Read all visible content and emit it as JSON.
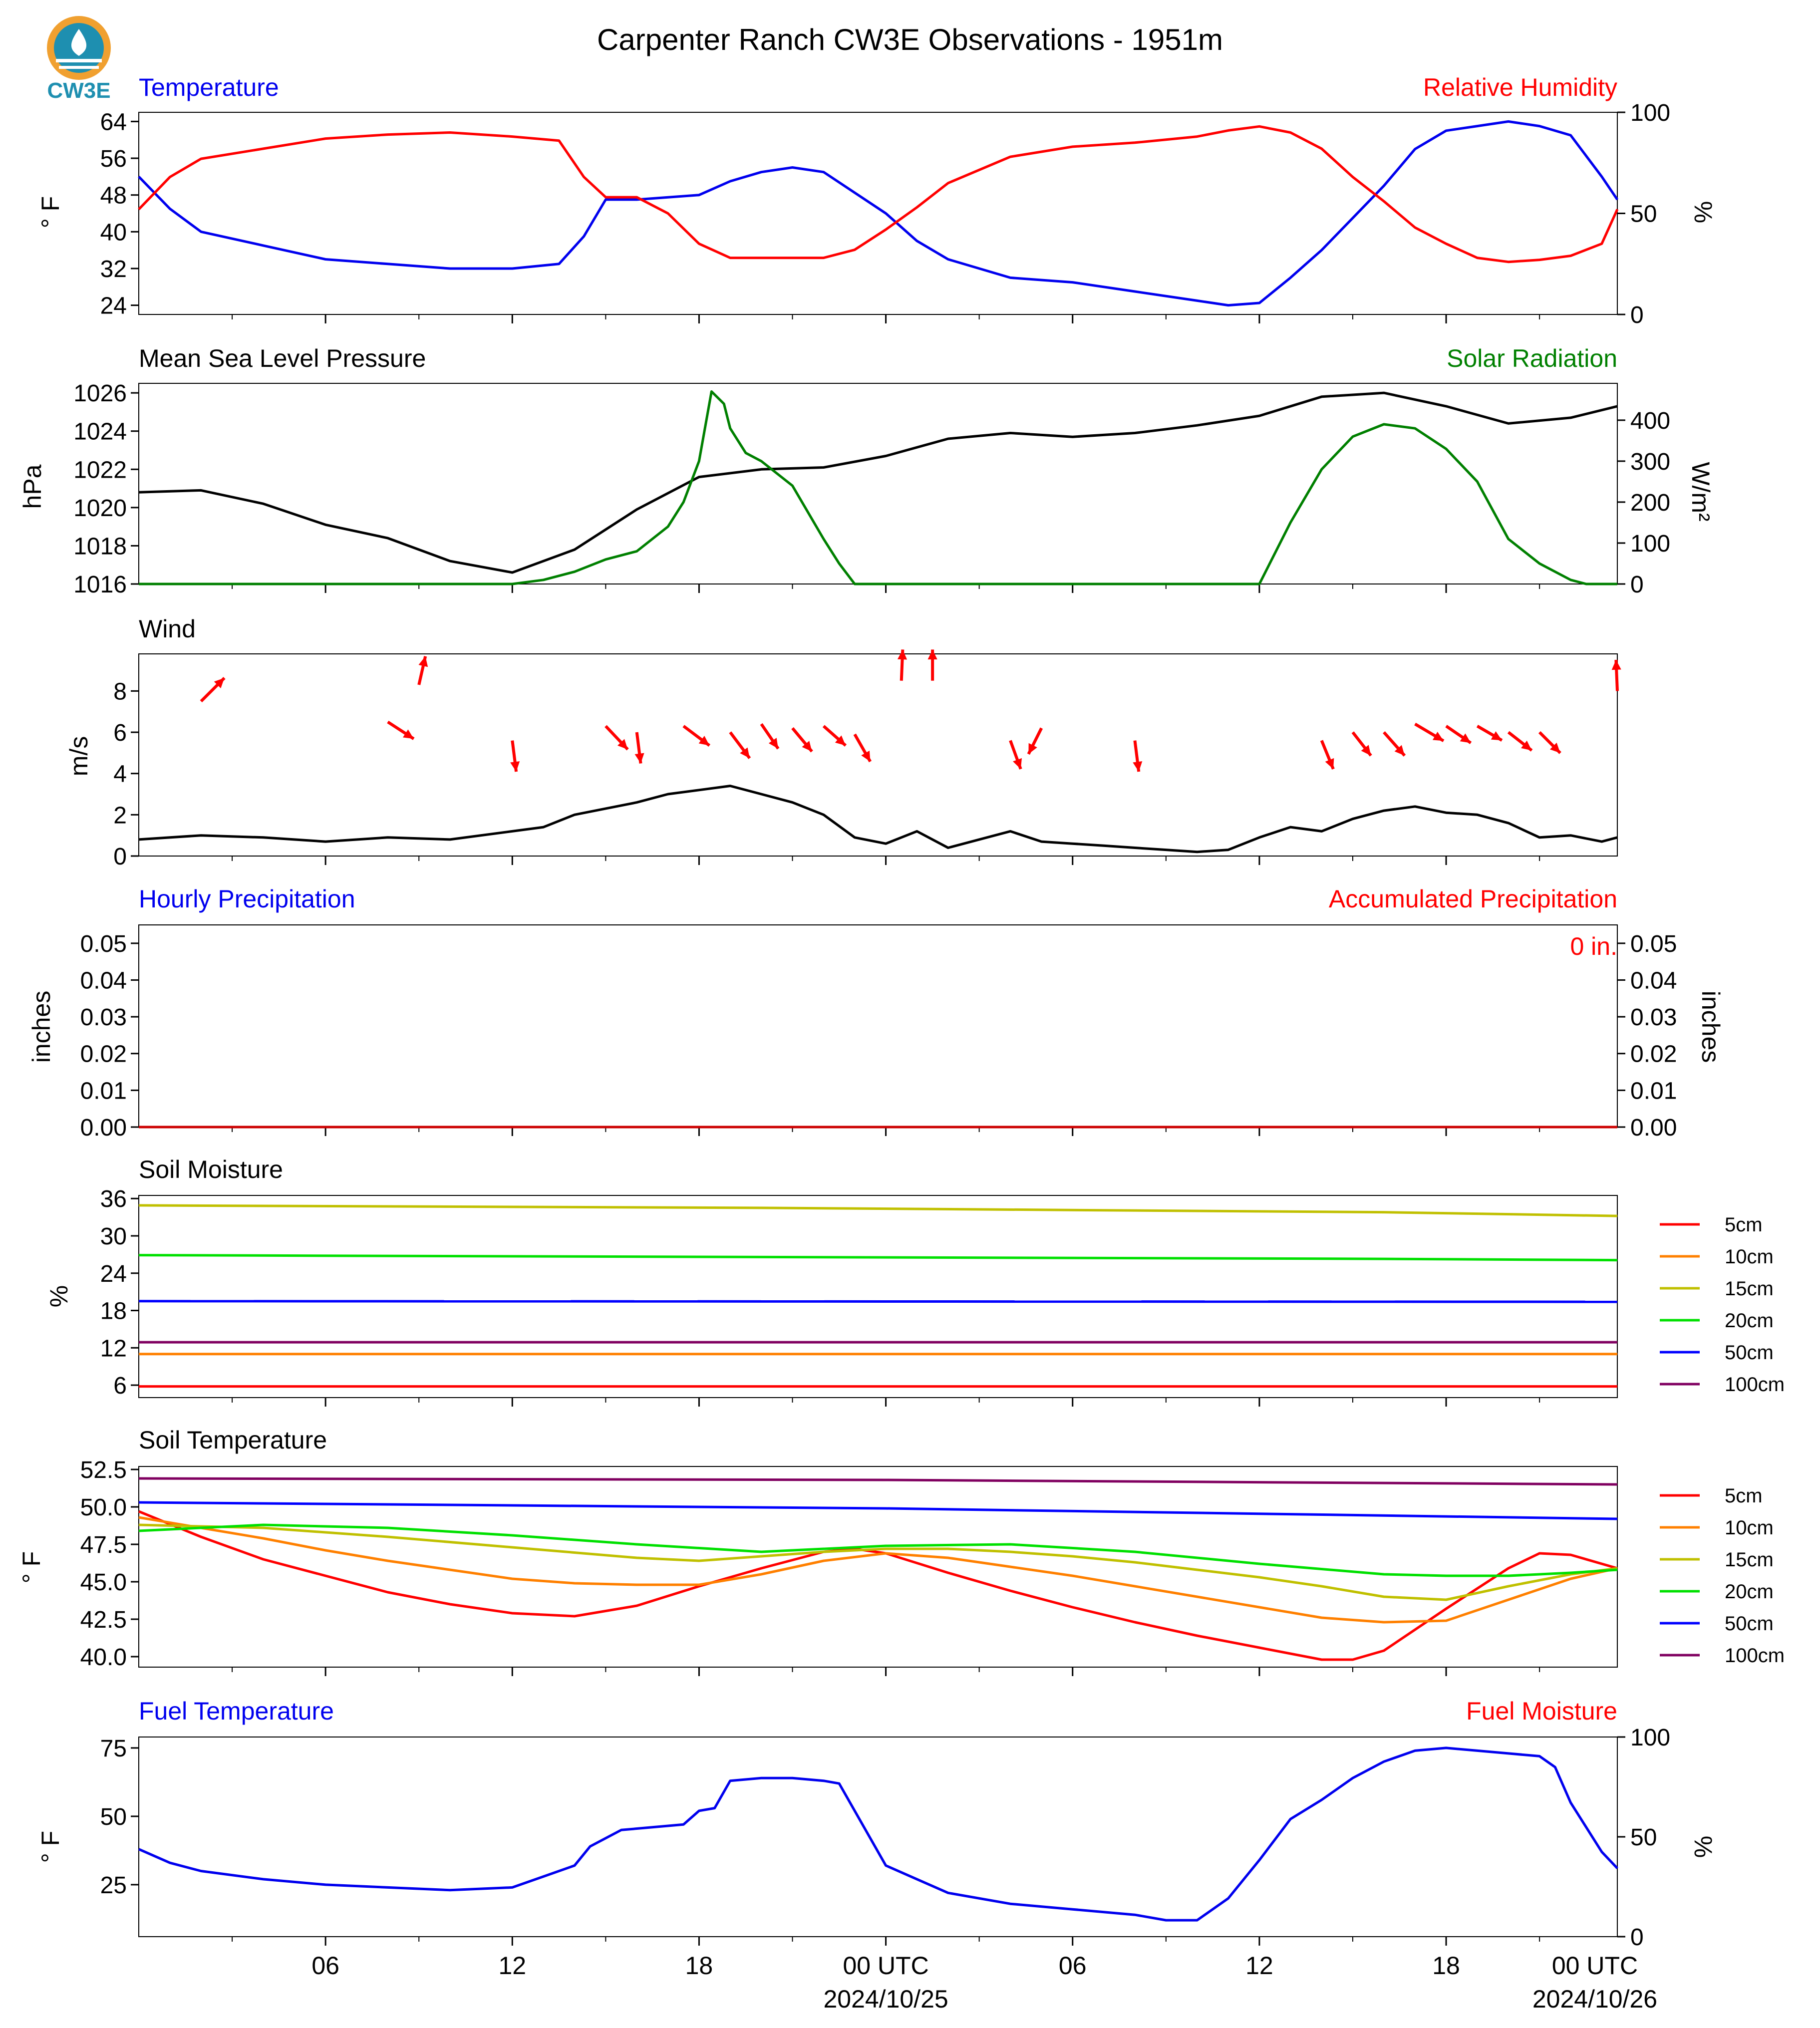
{
  "figure": {
    "title": "Carpenter Ranch CW3E Observations - 1951m",
    "logo_text": "CW3E",
    "colors": {
      "logo": "#1e8fb0",
      "logo_accent": "#f0a030"
    }
  },
  "time_axis": {
    "tick_labels": [
      "06",
      "12",
      "18",
      "00 UTC",
      "06",
      "12",
      "18",
      "00 UTC"
    ],
    "date_labels": [
      "2024/10/25",
      "2024/10/26"
    ]
  },
  "chart_data": [
    {
      "id": "temp_rh",
      "type": "line",
      "title_left": "Temperature",
      "title_right": "Relative Humidity",
      "ylabel_left": "° F",
      "ylabel_right": "%",
      "ylim_left": [
        22,
        66
      ],
      "yticks_left": [
        24,
        32,
        40,
        48,
        56,
        64
      ],
      "ylim_right": [
        0,
        100
      ],
      "yticks_right": [
        0,
        50,
        100
      ],
      "series": [
        {
          "name": "Temperature",
          "axis": "left",
          "color": "#0000ee",
          "x": [
            0,
            1,
            2,
            4,
            6,
            8,
            10,
            12,
            13.5,
            14.3,
            15,
            16,
            18,
            19,
            20,
            21,
            22,
            24,
            25,
            26,
            28,
            30,
            32,
            34,
            35,
            36,
            37,
            38,
            39,
            40,
            40.5,
            41,
            42,
            43,
            44,
            45,
            46,
            47,
            47.5
          ],
          "y": [
            52,
            45,
            40,
            37,
            34,
            33,
            32,
            32,
            33,
            39,
            47,
            47,
            48,
            51,
            53,
            54,
            53,
            44,
            38,
            34,
            30,
            29,
            27,
            25,
            24,
            24.5,
            30,
            36,
            43,
            50,
            54,
            58,
            62,
            63,
            64,
            63,
            61,
            52,
            47
          ]
        },
        {
          "name": "Relative Humidity",
          "axis": "right",
          "color": "#ff0000",
          "x": [
            0,
            1,
            2,
            4,
            6,
            8,
            10,
            12,
            13.5,
            14.3,
            15,
            16,
            17,
            18,
            19,
            20,
            21,
            22,
            23,
            24,
            25,
            26,
            28,
            30,
            32,
            34,
            35,
            36,
            37,
            38,
            39,
            40,
            41,
            42,
            43,
            44,
            45,
            46,
            47,
            47.5
          ],
          "y": [
            52,
            68,
            77,
            82,
            87,
            89,
            90,
            88,
            86,
            68,
            58,
            58,
            50,
            35,
            28,
            28,
            28,
            28,
            32,
            42,
            53,
            65,
            78,
            83,
            85,
            88,
            91,
            93,
            90,
            82,
            68,
            56,
            43,
            35,
            28,
            26,
            27,
            29,
            35,
            52
          ]
        }
      ]
    },
    {
      "id": "pressure_solar",
      "type": "line",
      "title_left": "Mean Sea Level Pressure",
      "title_right": "Solar Radiation",
      "ylabel_left": "hPa",
      "ylabel_right": "W/m²",
      "ylim_left": [
        1016,
        1026.5
      ],
      "yticks_left": [
        1016,
        1018,
        1020,
        1022,
        1024,
        1026
      ],
      "ylim_right": [
        0,
        490
      ],
      "yticks_right": [
        0,
        100,
        200,
        300,
        400
      ],
      "series": [
        {
          "name": "Mean Sea Level Pressure",
          "axis": "left",
          "color": "#000000",
          "x": [
            0,
            2,
            4,
            6,
            8,
            10,
            12,
            14,
            16,
            18,
            20,
            22,
            24,
            26,
            28,
            30,
            32,
            34,
            36,
            38,
            40,
            42,
            44,
            46,
            47.5
          ],
          "y": [
            1020.8,
            1020.9,
            1020.2,
            1019.1,
            1018.4,
            1017.2,
            1016.6,
            1017.8,
            1019.9,
            1021.6,
            1022.0,
            1022.1,
            1022.7,
            1023.6,
            1023.9,
            1023.7,
            1023.9,
            1024.3,
            1024.8,
            1025.8,
            1026.0,
            1025.3,
            1024.4,
            1024.7,
            1025.3
          ]
        },
        {
          "name": "Solar Radiation",
          "axis": "right",
          "color": "#008000",
          "x": [
            0,
            11,
            12,
            13,
            14,
            15,
            16,
            17,
            17.5,
            18,
            18.4,
            18.8,
            19,
            19.5,
            20,
            21,
            22,
            22.5,
            23,
            24,
            34,
            36,
            37,
            38,
            39,
            40,
            41,
            42,
            43,
            44,
            45,
            46,
            46.5,
            47.5
          ],
          "y": [
            0,
            0,
            0,
            10,
            30,
            60,
            80,
            140,
            200,
            300,
            470,
            440,
            380,
            320,
            300,
            240,
            110,
            50,
            0,
            0,
            0,
            0,
            150,
            280,
            360,
            390,
            380,
            330,
            250,
            110,
            50,
            10,
            0,
            0
          ]
        }
      ]
    },
    {
      "id": "wind",
      "type": "line",
      "title": "Wind",
      "ylabel": "m/s",
      "ylim": [
        0,
        9.8
      ],
      "yticks": [
        0,
        2,
        4,
        6,
        8
      ],
      "series": [
        {
          "name": "Wind Speed",
          "color": "#000000",
          "x": [
            0,
            2,
            4,
            6,
            8,
            10,
            12,
            13,
            14,
            15,
            16,
            17,
            18,
            19,
            20,
            21,
            22,
            23,
            24,
            25,
            26,
            27,
            28,
            29,
            30,
            31,
            32,
            33,
            34,
            35,
            36,
            37,
            38,
            39,
            40,
            41,
            42,
            43,
            44,
            45,
            46,
            47,
            47.5
          ],
          "y": [
            0.8,
            1.0,
            0.9,
            0.7,
            0.9,
            0.8,
            1.2,
            1.4,
            2.0,
            2.3,
            2.6,
            3.0,
            3.2,
            3.4,
            3.0,
            2.6,
            2.0,
            0.9,
            0.6,
            1.2,
            0.4,
            0.8,
            1.2,
            0.7,
            0.6,
            0.5,
            0.4,
            0.3,
            0.2,
            0.3,
            0.9,
            1.4,
            1.2,
            1.8,
            2.2,
            2.4,
            2.1,
            2.0,
            1.6,
            0.9,
            1.0,
            0.7,
            0.9
          ]
        }
      ],
      "arrows": {
        "color": "#ff0000",
        "x": [
          2,
          8,
          9,
          12,
          15,
          16,
          17.5,
          19,
          20,
          21,
          22,
          23,
          24.5,
          25.5,
          28,
          29,
          32,
          38,
          39,
          40,
          41,
          42,
          43,
          44,
          45,
          47.5
        ],
        "y": [
          7.5,
          6.5,
          8.3,
          5.6,
          6.3,
          6.0,
          6.3,
          6.0,
          6.4,
          6.2,
          6.3,
          5.9,
          8.5,
          8.5,
          5.6,
          6.2,
          5.6,
          5.6,
          6.0,
          6.0,
          6.4,
          6.3,
          6.3,
          6.0,
          6.0,
          8.0
        ],
        "u": [
          1.8,
          2.0,
          0.5,
          0.3,
          1.7,
          0.3,
          2.0,
          1.5,
          1.3,
          1.5,
          1.7,
          1.2,
          0.1,
          0.0,
          0.8,
          -1.0,
          0.3,
          0.9,
          1.4,
          1.6,
          2.2,
          1.9,
          1.9,
          1.8,
          1.6,
          -0.1
        ],
        "v": [
          1.8,
          -1.3,
          2.2,
          -2.4,
          -1.8,
          -2.4,
          -1.5,
          -2.0,
          -1.9,
          -1.8,
          -1.5,
          -2.1,
          2.4,
          2.4,
          -2.2,
          -2.0,
          -2.4,
          -2.2,
          -1.8,
          -1.8,
          -1.3,
          -1.3,
          -1.1,
          -1.4,
          -1.6,
          2.4
        ]
      }
    },
    {
      "id": "precip",
      "type": "line",
      "title_left": "Hourly Precipitation",
      "title_right": "Accumulated Precipitation",
      "ylabel_left": "inches",
      "ylabel_right": "inches",
      "ylim": [
        0,
        0.055
      ],
      "yticks": [
        0.0,
        0.01,
        0.02,
        0.03,
        0.04,
        0.05
      ],
      "annotation": "0 in.",
      "series": [
        {
          "name": "Accumulated Precipitation",
          "color": "#cc0000",
          "x": [
            0,
            47.5
          ],
          "y": [
            0,
            0
          ]
        }
      ]
    },
    {
      "id": "soil_moisture",
      "type": "line",
      "title": "Soil Moisture",
      "ylabel": "%",
      "ylim": [
        4,
        36.5
      ],
      "yticks": [
        6,
        12,
        18,
        24,
        30,
        36
      ],
      "series": [
        {
          "name": "5cm",
          "color": "#ff0000",
          "x": [
            0,
            47.5
          ],
          "y": [
            5.8,
            5.8
          ]
        },
        {
          "name": "10cm",
          "color": "#ff8000",
          "x": [
            0,
            47.5
          ],
          "y": [
            11.0,
            11.0
          ]
        },
        {
          "name": "15cm",
          "color": "#c0c000",
          "x": [
            0,
            20,
            40,
            47.5
          ],
          "y": [
            34.9,
            34.5,
            33.8,
            33.2
          ]
        },
        {
          "name": "20cm",
          "color": "#00e000",
          "x": [
            0,
            20,
            40,
            47.5
          ],
          "y": [
            26.9,
            26.6,
            26.3,
            26.1
          ]
        },
        {
          "name": "50cm",
          "color": "#0000ff",
          "x": [
            0,
            47.5
          ],
          "y": [
            19.5,
            19.4
          ]
        },
        {
          "name": "100cm",
          "color": "#800060",
          "x": [
            0,
            47.5
          ],
          "y": [
            12.9,
            12.9
          ]
        }
      ]
    },
    {
      "id": "soil_temperature",
      "type": "line",
      "title": "Soil Temperature",
      "ylabel": "° F",
      "ylim": [
        39.3,
        52.7
      ],
      "yticks": [
        40.0,
        42.5,
        45.0,
        47.5,
        50.0,
        52.5
      ],
      "series": [
        {
          "name": "5cm",
          "color": "#ff0000",
          "x": [
            0,
            2,
            4,
            6,
            8,
            10,
            12,
            14,
            16,
            18,
            20,
            22,
            23,
            24,
            26,
            28,
            30,
            32,
            34,
            36,
            38,
            39,
            40,
            42,
            44,
            45,
            46,
            47.5
          ],
          "y": [
            49.7,
            48.0,
            46.5,
            45.4,
            44.3,
            43.5,
            42.9,
            42.7,
            43.4,
            44.7,
            45.9,
            47.0,
            47.2,
            46.9,
            45.6,
            44.4,
            43.3,
            42.3,
            41.4,
            40.6,
            39.8,
            39.8,
            40.4,
            43.2,
            45.9,
            46.9,
            46.8,
            45.9
          ]
        },
        {
          "name": "10cm",
          "color": "#ff8000",
          "x": [
            0,
            2,
            4,
            6,
            8,
            10,
            12,
            14,
            16,
            18,
            20,
            22,
            24,
            26,
            28,
            30,
            32,
            34,
            36,
            38,
            40,
            42,
            44,
            46,
            47.5
          ],
          "y": [
            49.3,
            48.6,
            47.9,
            47.1,
            46.4,
            45.8,
            45.2,
            44.9,
            44.8,
            44.8,
            45.5,
            46.4,
            46.9,
            46.6,
            46.0,
            45.4,
            44.7,
            44.0,
            43.3,
            42.6,
            42.3,
            42.4,
            43.8,
            45.2,
            45.9
          ]
        },
        {
          "name": "15cm",
          "color": "#c0c000",
          "x": [
            0,
            4,
            8,
            12,
            16,
            18,
            20,
            22,
            24,
            26,
            28,
            30,
            32,
            34,
            36,
            38,
            40,
            42,
            44,
            46,
            47.5
          ],
          "y": [
            48.8,
            48.6,
            48.0,
            47.3,
            46.6,
            46.4,
            46.7,
            47.0,
            47.2,
            47.2,
            47.0,
            46.7,
            46.3,
            45.8,
            45.3,
            44.7,
            44.0,
            43.8,
            44.7,
            45.5,
            45.9
          ]
        },
        {
          "name": "20cm",
          "color": "#00e000",
          "x": [
            0,
            4,
            8,
            12,
            16,
            20,
            24,
            28,
            32,
            36,
            40,
            42,
            44,
            46,
            47.5
          ],
          "y": [
            48.4,
            48.8,
            48.6,
            48.1,
            47.5,
            47.0,
            47.4,
            47.5,
            47.0,
            46.2,
            45.5,
            45.4,
            45.4,
            45.6,
            45.8
          ]
        },
        {
          "name": "50cm",
          "color": "#0000ff",
          "x": [
            0,
            24,
            47.5
          ],
          "y": [
            50.3,
            49.9,
            49.2
          ]
        },
        {
          "name": "100cm",
          "color": "#800060",
          "x": [
            0,
            24,
            47.5
          ],
          "y": [
            51.9,
            51.8,
            51.5
          ]
        }
      ]
    },
    {
      "id": "fuel",
      "type": "line",
      "title_left": "Fuel Temperature",
      "title_right": "Fuel Moisture",
      "ylabel_left": "° F",
      "ylabel_right": "%",
      "ylim_left": [
        6,
        79
      ],
      "yticks_left": [
        25,
        50,
        75
      ],
      "ylim_right": [
        0,
        100
      ],
      "yticks_right": [
        0,
        50,
        100
      ],
      "series": [
        {
          "name": "Fuel Temperature",
          "axis": "left",
          "color": "#0000ee",
          "x": [
            0,
            1,
            2,
            4,
            6,
            8,
            10,
            12,
            13,
            14,
            14.5,
            15.5,
            16.5,
            17.5,
            18,
            18.5,
            19,
            20,
            21,
            22,
            22.5,
            23,
            24,
            25,
            26,
            28,
            30,
            32,
            33,
            34,
            35,
            36,
            37,
            38,
            39,
            40,
            41,
            42,
            43,
            44,
            45,
            45.5,
            46,
            47,
            47.5
          ],
          "y": [
            38,
            33,
            30,
            27,
            25,
            24,
            23,
            24,
            28,
            32,
            39,
            45,
            46,
            47,
            52,
            53,
            63,
            64,
            64,
            63,
            62,
            52,
            32,
            27,
            22,
            18,
            16,
            14,
            12,
            12,
            20,
            34,
            49,
            56,
            64,
            70,
            74,
            75,
            74,
            73,
            72,
            68,
            55,
            37,
            31
          ]
        }
      ]
    }
  ],
  "legends": {
    "soil": [
      "5cm",
      "10cm",
      "15cm",
      "20cm",
      "50cm",
      "100cm"
    ],
    "colors": [
      "#ff0000",
      "#ff8000",
      "#c0c000",
      "#00e000",
      "#0000ff",
      "#800060"
    ]
  }
}
